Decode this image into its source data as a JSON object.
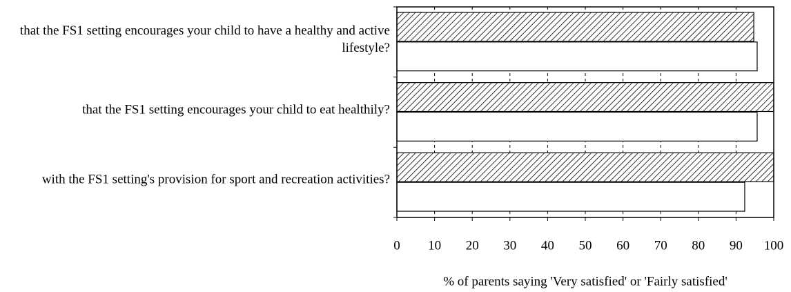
{
  "chart_data": {
    "type": "hbar",
    "categories": [
      "that the FS1 setting encourages your child to have a healthy and active lifestyle?",
      "that the FS1 setting encourages your child to eat healthily?",
      "with the FS1 setting's provision for sport and recreation activities?"
    ],
    "series": [
      {
        "color": "#ffffff",
        "hatch": true,
        "values": [
          94.7,
          100,
          100
        ]
      },
      {
        "color": "#ffffff",
        "hatch": false,
        "values": [
          95.6,
          95.6,
          92.3
        ]
      }
    ],
    "xlabel": "% of parents saying 'Very satisfied' or 'Fairly satisfied'",
    "xlim": [
      0,
      100
    ],
    "xticks": [
      0,
      10,
      20,
      30,
      40,
      50,
      60,
      70,
      80,
      90,
      100
    ],
    "grid": true
  }
}
